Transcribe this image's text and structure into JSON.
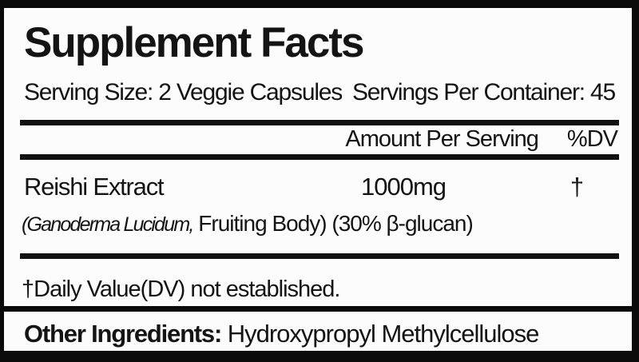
{
  "label": {
    "title": "Supplement Facts",
    "serving_size": "Serving Size: 2 Veggie Capsules",
    "servings_per_container": "Servings Per Container: 45",
    "columns": {
      "amount": "Amount Per Serving",
      "dv": "%DV"
    },
    "rows": [
      {
        "name": "Reishi Extract",
        "amount": "1000mg",
        "dv": "†",
        "detail_italic": "(Ganoderma Lucidum,",
        "detail_rest": " Fruiting Body) (30% β-glucan)"
      }
    ],
    "footnote": "†Daily Value(DV) not established.",
    "other_ingredients_label": "Other Ingredients:",
    "other_ingredients_value": " Hydroxypropyl Methylcellulose"
  },
  "colors": {
    "frame": "#0a0a0a",
    "panel_background": "#fcfcfc",
    "text": "#141414",
    "divider_bar": "#111111"
  }
}
